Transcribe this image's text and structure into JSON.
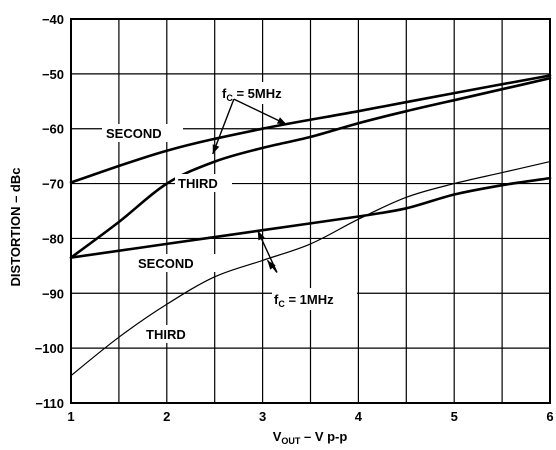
{
  "chart_data": {
    "type": "line",
    "title": "",
    "xlabel": {
      "main": "V",
      "sub": "OUT",
      "rest": " – V p-p"
    },
    "ylabel": "DISTORTION – dBc",
    "xlim": [
      1,
      6
    ],
    "ylim": [
      -110,
      -40
    ],
    "x_ticks": [
      "1",
      "2",
      "3",
      "4",
      "5",
      "6"
    ],
    "y_ticks": [
      "−40",
      "−50",
      "−60",
      "−70",
      "−80",
      "−90",
      "−100",
      "−110"
    ],
    "grid": true,
    "legend": "none",
    "series": [
      {
        "key": "second_5mhz",
        "weight": "thick",
        "x": [
          1,
          2,
          3,
          4,
          5,
          6
        ],
        "y": [
          -69.8,
          -64.0,
          -60.0,
          -56.8,
          -53.5,
          -50.3
        ]
      },
      {
        "key": "third_5mhz",
        "weight": "thick",
        "x": [
          1,
          1.5,
          2,
          2.5,
          3,
          3.5,
          4,
          4.5,
          5,
          5.5,
          6
        ],
        "y": [
          -83.5,
          -77.0,
          -70.0,
          -66.0,
          -63.5,
          -61.5,
          -59.0,
          -56.8,
          -54.8,
          -52.8,
          -50.8
        ]
      },
      {
        "key": "second_1mhz",
        "weight": "thick",
        "x": [
          1,
          2,
          3,
          4,
          4.5,
          5,
          5.5,
          6
        ],
        "y": [
          -83.5,
          -81.0,
          -78.5,
          -76.0,
          -74.5,
          -72.0,
          -70.3,
          -69.0
        ]
      },
      {
        "key": "third_1mhz",
        "weight": "thin",
        "x": [
          1,
          1.5,
          2,
          2.5,
          3,
          3.5,
          4,
          4.5,
          5,
          5.5,
          6
        ],
        "y": [
          -105.0,
          -98.0,
          -92.0,
          -87.0,
          -84.0,
          -81.0,
          -76.5,
          -72.5,
          -70.0,
          -68.0,
          -66.0
        ]
      }
    ],
    "annotations": {
      "second_top": "SECOND",
      "third_top": "THIRD",
      "second_bottom": "SECOND",
      "third_bottom": "THIRD",
      "fc_5mhz": {
        "main": "f",
        "sub": "C",
        "rest": " = 5MHz"
      },
      "fc_1mhz": {
        "main": "f",
        "sub": "C",
        "rest": " = 1MHz"
      }
    }
  }
}
